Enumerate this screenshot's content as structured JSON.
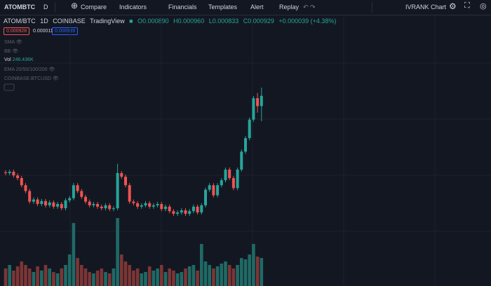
{
  "toolbar": {
    "symbol": "ATOMBTC",
    "interval": "D",
    "compare": "Compare",
    "indicators": "Indicators",
    "financials": "Financials",
    "templates": "Templates",
    "alert": "Alert",
    "replay": "Replay",
    "layout": "IVRANK Chart"
  },
  "legend": {
    "pair": "ATOM/BTC",
    "interval": "1D",
    "exchange": "COINBASE",
    "source": "TradingView",
    "o_label": "O",
    "o": "0.000890",
    "h_label": "H",
    "h": "0.000960",
    "l_label": "L",
    "l": "0.000833",
    "c_label": "C",
    "c": "0.000929",
    "change": "+0.000039 (+4.38%)",
    "bid": "0.000928",
    "spread": "0.000011",
    "ask": "0.000939"
  },
  "indicators": {
    "sma": "SMA",
    "bb": "BB",
    "vol": "Vol",
    "vol_value": "246.436K",
    "ema": "EMA 20/50/100/200",
    "btcusd": "COINBASE:BTCUSD"
  },
  "chart_data": {
    "type": "candlestick",
    "up_color": "#26a69a",
    "down_color": "#ef5350",
    "volume_up_color": "#1f6a66",
    "volume_down_color": "#7d3535",
    "open": [
      0.00064,
      0.000637,
      0.000642,
      0.000628,
      0.000618,
      0.000591,
      0.000569,
      0.000529,
      0.000537,
      0.00052,
      0.000531,
      0.000515,
      0.000526,
      0.00051,
      0.00052,
      0.000504,
      0.000534,
      0.000542,
      0.000591,
      0.000569,
      0.000547,
      0.000529,
      0.000515,
      0.00052,
      0.00051,
      0.000504,
      0.000515,
      0.000501,
      0.000504,
      0.000637,
      0.000623,
      0.000591,
      0.000529,
      0.000523,
      0.00051,
      0.000515,
      0.000523,
      0.00051,
      0.000515,
      0.00052,
      0.000501,
      0.00051,
      0.000493,
      0.000483,
      0.000488,
      0.000496,
      0.000483,
      0.000493,
      0.00051,
      0.000488,
      0.000515,
      0.000574,
      0.000591,
      0.000553,
      0.000591,
      0.00061,
      0.00065,
      0.000618,
      0.00058,
      0.00065,
      0.000718,
      0.000769,
      0.000839,
      0.00092,
      0.00089
    ],
    "high": [
      0.000648,
      0.00065,
      0.00065,
      0.000636,
      0.000626,
      0.000599,
      0.000577,
      0.000545,
      0.000545,
      0.000539,
      0.000539,
      0.000534,
      0.000534,
      0.000528,
      0.000528,
      0.000542,
      0.00055,
      0.000599,
      0.000599,
      0.000577,
      0.000555,
      0.000537,
      0.000528,
      0.000528,
      0.000518,
      0.000523,
      0.000523,
      0.000512,
      0.000672,
      0.000645,
      0.000631,
      0.000599,
      0.000537,
      0.000531,
      0.000523,
      0.000531,
      0.000531,
      0.000523,
      0.000528,
      0.000528,
      0.000518,
      0.000518,
      0.000501,
      0.000496,
      0.000504,
      0.000504,
      0.000501,
      0.000518,
      0.000518,
      0.000523,
      0.000582,
      0.000599,
      0.000599,
      0.000599,
      0.000618,
      0.000658,
      0.000658,
      0.000626,
      0.000658,
      0.000726,
      0.000777,
      0.000847,
      0.000928,
      0.00094,
      0.00096
    ],
    "low": [
      0.000629,
      0.000629,
      0.00062,
      0.00061,
      0.000583,
      0.000561,
      0.000521,
      0.000521,
      0.000512,
      0.000512,
      0.000507,
      0.000507,
      0.000502,
      0.000502,
      0.000496,
      0.000496,
      0.000526,
      0.000534,
      0.000561,
      0.000539,
      0.000521,
      0.000507,
      0.000507,
      0.000502,
      0.000496,
      0.000496,
      0.000493,
      0.000493,
      0.000496,
      0.000615,
      0.000583,
      0.000521,
      0.000515,
      0.000502,
      0.000502,
      0.000507,
      0.000502,
      0.000502,
      0.000507,
      0.000493,
      0.000493,
      0.000485,
      0.000475,
      0.000475,
      0.00048,
      0.000475,
      0.000475,
      0.000485,
      0.00048,
      0.00048,
      0.000507,
      0.000566,
      0.000545,
      0.000545,
      0.000583,
      0.000602,
      0.00061,
      0.000572,
      0.000572,
      0.000642,
      0.00071,
      0.000761,
      0.000831,
      0.000865,
      0.000833
    ],
    "close": [
      0.000637,
      0.000642,
      0.000628,
      0.000618,
      0.000591,
      0.000569,
      0.000529,
      0.000537,
      0.00052,
      0.000531,
      0.000515,
      0.000526,
      0.00051,
      0.00052,
      0.000504,
      0.000534,
      0.000542,
      0.000591,
      0.000569,
      0.000547,
      0.000529,
      0.000515,
      0.00052,
      0.00051,
      0.000504,
      0.000515,
      0.000501,
      0.000504,
      0.000637,
      0.000623,
      0.000591,
      0.000529,
      0.000523,
      0.00051,
      0.000515,
      0.000523,
      0.00051,
      0.000515,
      0.00052,
      0.000501,
      0.00051,
      0.000493,
      0.000483,
      0.000488,
      0.000496,
      0.000483,
      0.000493,
      0.00051,
      0.000488,
      0.000515,
      0.000574,
      0.000591,
      0.000553,
      0.000591,
      0.00061,
      0.00065,
      0.000618,
      0.00058,
      0.00065,
      0.000718,
      0.000769,
      0.000839,
      0.00092,
      0.00089,
      0.000929
    ],
    "volume": [
      154000,
      185000,
      136000,
      173000,
      216000,
      185000,
      154000,
      123000,
      173000,
      136000,
      185000,
      154000,
      123000,
      111000,
      154000,
      185000,
      277000,
      554000,
      246000,
      185000,
      154000,
      123000,
      111000,
      136000,
      154000,
      123000,
      111000,
      154000,
      598000,
      277000,
      216000,
      185000,
      136000,
      154000,
      111000,
      123000,
      173000,
      136000,
      154000,
      185000,
      123000,
      154000,
      136000,
      111000,
      123000,
      154000,
      173000,
      185000,
      136000,
      370000,
      216000,
      185000,
      154000,
      173000,
      197000,
      216000,
      185000,
      154000,
      185000,
      246000,
      234000,
      277000,
      370000,
      259000,
      246436
    ]
  }
}
